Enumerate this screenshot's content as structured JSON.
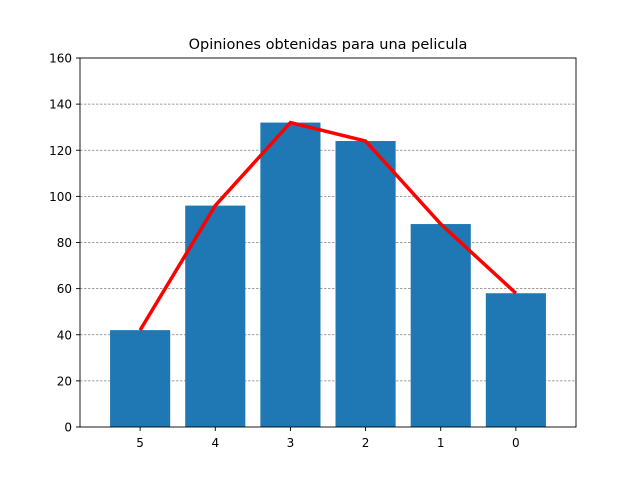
{
  "chart_data": {
    "type": "bar",
    "title": "Opiniones obtenidas para una pelicula",
    "xlabel": "",
    "ylabel": "",
    "categories": [
      "5",
      "4",
      "3",
      "2",
      "1",
      "0"
    ],
    "values": [
      42,
      96,
      132,
      124,
      88,
      58
    ],
    "overlay_line": {
      "values": [
        42,
        96,
        132,
        124,
        88,
        58
      ]
    },
    "ylim": [
      0,
      160
    ],
    "yticks": [
      0,
      20,
      40,
      60,
      80,
      100,
      120,
      140,
      160
    ],
    "grid": {
      "axis": "y",
      "style": "dashed",
      "color": "#808080"
    },
    "colors": {
      "bar": "#1f77b4",
      "line": "#ff0000"
    }
  }
}
